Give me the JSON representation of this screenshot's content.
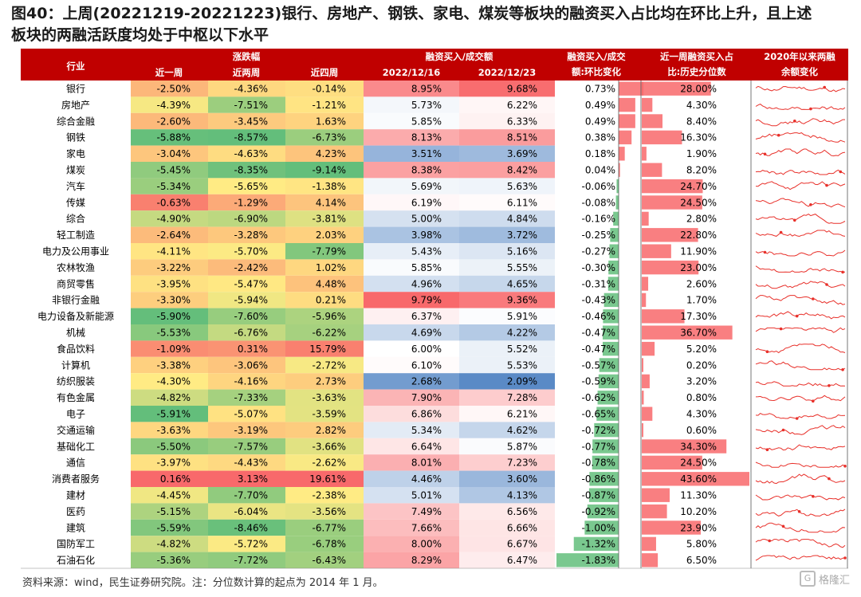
{
  "title": {
    "line1": "图40：上周(20221219-20221223)银行、房地产、钢铁、家电、煤炭等板块的融资买入占比均在环比上升，且上述",
    "line2": "板块的两融活跃度均处于中枢以下水平"
  },
  "headers": {
    "industry": "行业",
    "change_group": "涨跌幅",
    "w1": "近一周",
    "w2": "近两周",
    "w4": "近四周",
    "ratio_group": "融资买入/成交额",
    "d1": "2022/12/16",
    "d2": "2022/12/23",
    "wow_l1": "融资买入/成交",
    "wow_l2": "额:环比变化",
    "pct_l1": "近一周融资买入占",
    "pct_l2": "比:历史分位数",
    "trend_l1": "2020年以来两融",
    "trend_l2": "余额变化"
  },
  "source": "资料来源：wind，民生证券研究院。注：分位数计算的起点为 2014 年 1 月。",
  "watermark": "格隆汇",
  "chart_data": {
    "type": "table",
    "columns": [
      "行业",
      "近一周",
      "近两周",
      "近四周",
      "2022/12/16",
      "2022/12/23",
      "环比变化",
      "历史分位数"
    ],
    "rows": [
      {
        "name": "银行",
        "w1": "-2.50%",
        "w2": "-4.36%",
        "w4": "-0.14%",
        "r1": "8.95%",
        "r2": "9.68%",
        "wow": "0.73%",
        "pct": "28.00%"
      },
      {
        "name": "房地产",
        "w1": "-4.39%",
        "w2": "-7.51%",
        "w4": "-1.21%",
        "r1": "5.73%",
        "r2": "6.22%",
        "wow": "0.49%",
        "pct": "4.30%"
      },
      {
        "name": "综合金融",
        "w1": "-2.60%",
        "w2": "-3.45%",
        "w4": "1.63%",
        "r1": "5.85%",
        "r2": "6.33%",
        "wow": "0.49%",
        "pct": "8.40%"
      },
      {
        "name": "钢铁",
        "w1": "-5.88%",
        "w2": "-8.57%",
        "w4": "-6.73%",
        "r1": "8.13%",
        "r2": "8.51%",
        "wow": "0.38%",
        "pct": "16.30%"
      },
      {
        "name": "家电",
        "w1": "-3.04%",
        "w2": "-4.63%",
        "w4": "4.23%",
        "r1": "3.51%",
        "r2": "3.69%",
        "wow": "0.18%",
        "pct": "1.90%"
      },
      {
        "name": "煤炭",
        "w1": "-5.45%",
        "w2": "-8.35%",
        "w4": "-9.14%",
        "r1": "8.38%",
        "r2": "8.42%",
        "wow": "0.04%",
        "pct": "8.20%"
      },
      {
        "name": "汽车",
        "w1": "-5.34%",
        "w2": "-5.65%",
        "w4": "-1.38%",
        "r1": "5.69%",
        "r2": "5.63%",
        "wow": "-0.06%",
        "pct": "24.70%"
      },
      {
        "name": "传媒",
        "w1": "-0.63%",
        "w2": "-1.29%",
        "w4": "4.14%",
        "r1": "6.19%",
        "r2": "6.11%",
        "wow": "-0.08%",
        "pct": "24.50%"
      },
      {
        "name": "综合",
        "w1": "-4.90%",
        "w2": "-6.90%",
        "w4": "-3.81%",
        "r1": "5.00%",
        "r2": "4.84%",
        "wow": "-0.16%",
        "pct": "2.80%"
      },
      {
        "name": "轻工制造",
        "w1": "-2.64%",
        "w2": "-3.28%",
        "w4": "2.03%",
        "r1": "3.98%",
        "r2": "3.72%",
        "wow": "-0.25%",
        "pct": "22.80%"
      },
      {
        "name": "电力及公用事业",
        "w1": "-4.11%",
        "w2": "-5.70%",
        "w4": "-7.79%",
        "r1": "5.43%",
        "r2": "5.16%",
        "wow": "-0.27%",
        "pct": "11.90%"
      },
      {
        "name": "农林牧渔",
        "w1": "-3.22%",
        "w2": "-2.42%",
        "w4": "1.02%",
        "r1": "5.85%",
        "r2": "5.55%",
        "wow": "-0.30%",
        "pct": "23.00%"
      },
      {
        "name": "商贸零售",
        "w1": "-3.95%",
        "w2": "-5.47%",
        "w4": "4.48%",
        "r1": "4.96%",
        "r2": "4.65%",
        "wow": "-0.31%",
        "pct": "2.60%"
      },
      {
        "name": "非银行金融",
        "w1": "-3.30%",
        "w2": "-5.94%",
        "w4": "0.21%",
        "r1": "9.79%",
        "r2": "9.36%",
        "wow": "-0.43%",
        "pct": "1.70%"
      },
      {
        "name": "电力设备及新能源",
        "w1": "-5.90%",
        "w2": "-7.60%",
        "w4": "-5.96%",
        "r1": "6.37%",
        "r2": "5.91%",
        "wow": "-0.46%",
        "pct": "17.30%"
      },
      {
        "name": "机械",
        "w1": "-5.53%",
        "w2": "-6.76%",
        "w4": "-6.22%",
        "r1": "4.69%",
        "r2": "4.22%",
        "wow": "-0.47%",
        "pct": "36.70%"
      },
      {
        "name": "食品饮料",
        "w1": "-1.09%",
        "w2": "0.31%",
        "w4": "15.79%",
        "r1": "6.00%",
        "r2": "5.52%",
        "wow": "-0.47%",
        "pct": "5.20%"
      },
      {
        "name": "计算机",
        "w1": "-3.38%",
        "w2": "-3.06%",
        "w4": "-2.72%",
        "r1": "6.10%",
        "r2": "5.53%",
        "wow": "-0.57%",
        "pct": "0.20%"
      },
      {
        "name": "纺织服装",
        "w1": "-4.30%",
        "w2": "-4.16%",
        "w4": "2.73%",
        "r1": "2.68%",
        "r2": "2.09%",
        "wow": "-0.59%",
        "pct": "3.20%"
      },
      {
        "name": "有色金属",
        "w1": "-4.82%",
        "w2": "-7.33%",
        "w4": "-3.63%",
        "r1": "7.90%",
        "r2": "7.28%",
        "wow": "-0.62%",
        "pct": "0.80%"
      },
      {
        "name": "电子",
        "w1": "-5.91%",
        "w2": "-5.07%",
        "w4": "-3.59%",
        "r1": "6.86%",
        "r2": "6.21%",
        "wow": "-0.65%",
        "pct": "4.30%"
      },
      {
        "name": "交通运输",
        "w1": "-3.63%",
        "w2": "-3.19%",
        "w4": "2.82%",
        "r1": "5.34%",
        "r2": "4.62%",
        "wow": "-0.72%",
        "pct": "0.60%"
      },
      {
        "name": "基础化工",
        "w1": "-5.50%",
        "w2": "-7.57%",
        "w4": "-3.66%",
        "r1": "6.64%",
        "r2": "5.87%",
        "wow": "-0.77%",
        "pct": "34.30%"
      },
      {
        "name": "通信",
        "w1": "-3.97%",
        "w2": "-4.43%",
        "w4": "-2.62%",
        "r1": "8.01%",
        "r2": "7.23%",
        "wow": "-0.78%",
        "pct": "24.50%"
      },
      {
        "name": "消费者服务",
        "w1": "0.16%",
        "w2": "3.13%",
        "w4": "19.61%",
        "r1": "4.46%",
        "r2": "3.60%",
        "wow": "-0.86%",
        "pct": "43.60%"
      },
      {
        "name": "建材",
        "w1": "-4.45%",
        "w2": "-7.70%",
        "w4": "-2.38%",
        "r1": "5.01%",
        "r2": "4.13%",
        "wow": "-0.87%",
        "pct": "11.30%"
      },
      {
        "name": "医药",
        "w1": "-5.15%",
        "w2": "-6.04%",
        "w4": "-3.56%",
        "r1": "7.49%",
        "r2": "6.56%",
        "wow": "-0.92%",
        "pct": "10.20%"
      },
      {
        "name": "建筑",
        "w1": "-5.59%",
        "w2": "-8.46%",
        "w4": "-6.77%",
        "r1": "7.66%",
        "r2": "6.66%",
        "wow": "-1.00%",
        "pct": "23.90%"
      },
      {
        "name": "国防军工",
        "w1": "-4.82%",
        "w2": "-5.72%",
        "w4": "-6.78%",
        "r1": "8.00%",
        "r2": "6.67%",
        "wow": "-1.32%",
        "pct": "5.80%"
      },
      {
        "name": "石油石化",
        "w1": "-5.36%",
        "w2": "-7.72%",
        "w4": "-6.43%",
        "r1": "8.29%",
        "r2": "6.47%",
        "wow": "-1.83%",
        "pct": "6.50%"
      }
    ]
  },
  "colors": {
    "header_bg": "#c00000",
    "header_text": "#ffffff",
    "green": "#63be7b",
    "yellow": "#ffeb84",
    "red": "#f8696b",
    "blue": "#5a8ac6",
    "white": "#ffffff",
    "bar_green": "#63be7b",
    "bar_red": "#f8696b",
    "spark": "#e8302a"
  }
}
